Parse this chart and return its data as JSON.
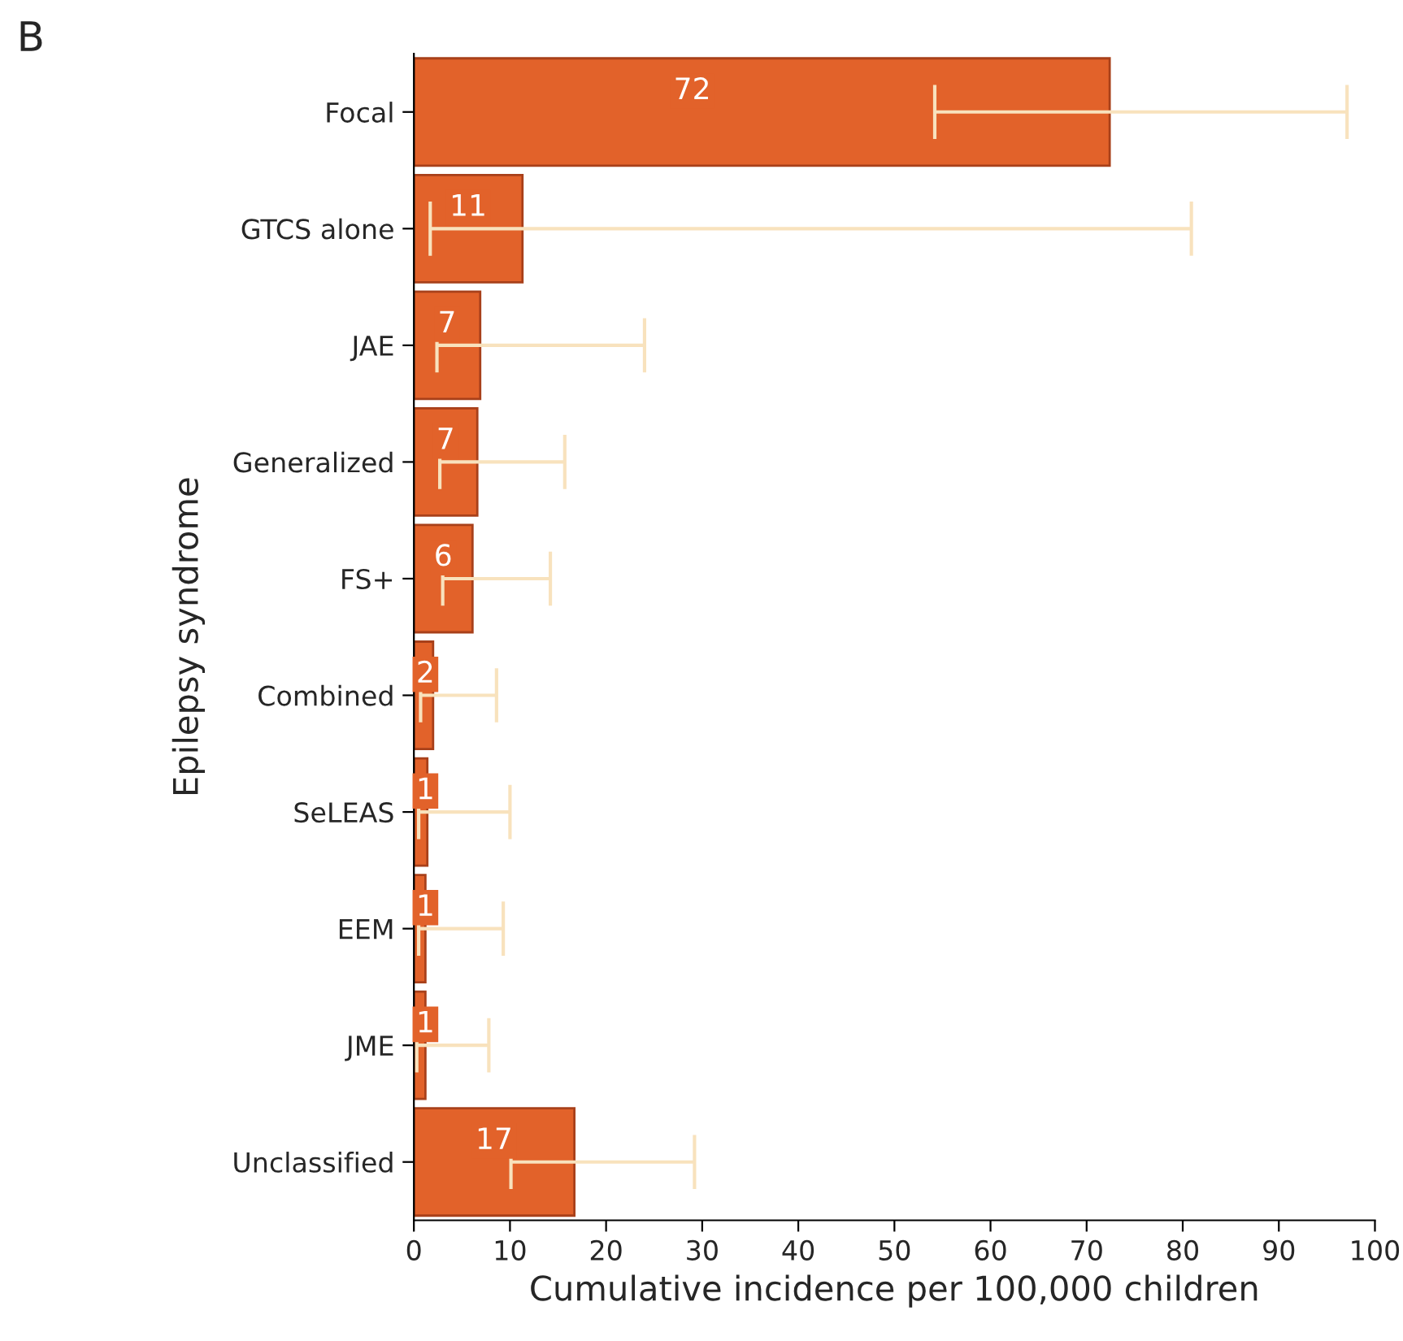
{
  "chart_data": {
    "type": "bar",
    "orientation": "horizontal",
    "xlabel": "Cumulative incidence per 100,000 children",
    "ylabel": "Epilepsy syndrome",
    "categories": [
      "Focal",
      "GTCS alone",
      "JAE",
      "Generalized",
      "FS+",
      "Combined",
      "SeLEAS",
      "EEM",
      "JME",
      "Unclassified"
    ],
    "values": [
      72.4,
      11.3,
      6.9,
      6.6,
      6.1,
      2.0,
      1.4,
      1.2,
      1.2,
      16.7
    ],
    "value_labels": [
      "72",
      "11",
      "7",
      "7",
      "6",
      "2",
      "1",
      "1",
      "1",
      "17"
    ],
    "errors": [
      [
        54.2,
        97.1
      ],
      [
        1.7,
        80.9
      ],
      [
        2.4,
        24.0
      ],
      [
        2.7,
        15.7
      ],
      [
        3.0,
        14.2
      ],
      [
        0.7,
        8.6
      ],
      [
        0.5,
        10.0
      ],
      [
        0.5,
        9.3
      ],
      [
        0.3,
        7.8
      ],
      [
        10.1,
        29.2
      ]
    ],
    "color": "#e2622a",
    "xlim": [
      0,
      100
    ],
    "xticks": [
      0,
      10,
      20,
      30,
      40,
      50,
      60,
      70,
      80,
      90,
      100
    ],
    "grid": false,
    "annotations": [
      "B"
    ]
  }
}
